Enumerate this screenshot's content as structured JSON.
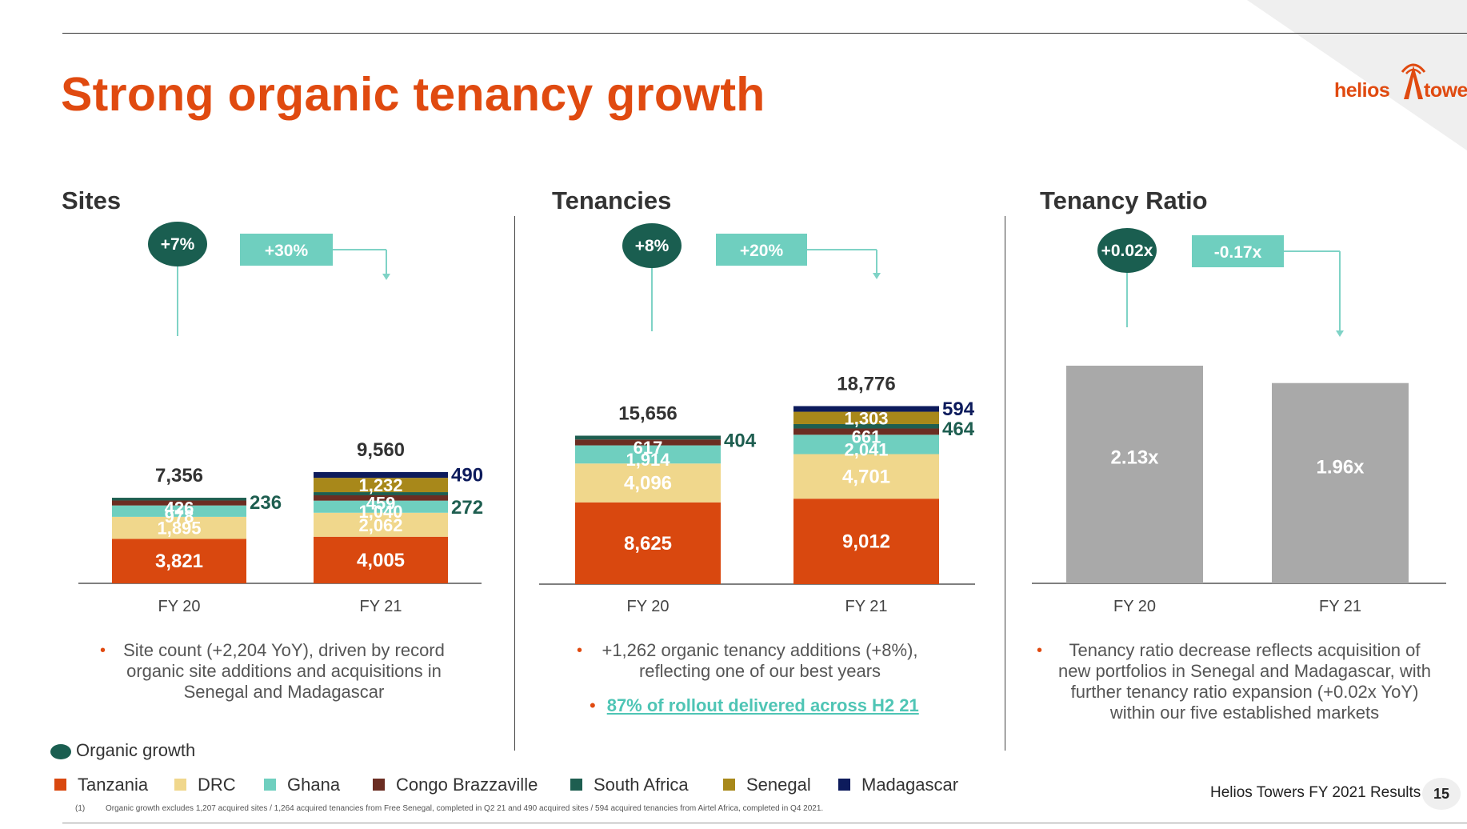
{
  "title": "Strong organic tenancy growth",
  "logo": {
    "left": "helios",
    "right": "towers"
  },
  "sections": {
    "sites": "Sites",
    "tenancies": "Tenancies",
    "ratio": "Tenancy Ratio"
  },
  "colors": {
    "accent": "#e04a10",
    "Tanzania": "#d9480f",
    "DRC": "#f0d78c",
    "Ghana": "#6fcfbf",
    "Congo Brazzaville": "#6b2d22",
    "South Africa": "#1e5e50",
    "Senegal": "#a8881a",
    "Madagascar": "#0d1b5c",
    "ratio_bar": "#a9a9a9",
    "organic": "#1a5e50",
    "growth_box": "#6fcfbf"
  },
  "chart_data": [
    {
      "type": "bar",
      "stacked": true,
      "title": "Sites",
      "categories": [
        "FY 20",
        "FY 21"
      ],
      "series": [
        {
          "name": "Tanzania",
          "values": [
            3821,
            4005
          ]
        },
        {
          "name": "DRC",
          "values": [
            1895,
            2062
          ]
        },
        {
          "name": "Ghana",
          "values": [
            978,
            1040
          ]
        },
        {
          "name": "Congo Brazzaville",
          "values": [
            426,
            459
          ]
        },
        {
          "name": "South Africa",
          "values": [
            236,
            272
          ]
        },
        {
          "name": "Senegal",
          "values": [
            0,
            1232
          ]
        },
        {
          "name": "Madagascar",
          "values": [
            0,
            490
          ]
        }
      ],
      "totals": [
        "7,356",
        "9,560"
      ],
      "labels": {
        "FY 20": {
          "Tanzania": "3,821",
          "DRC": "1,895",
          "Ghana": "978",
          "Congo Brazzaville": "426",
          "South Africa": "236"
        },
        "FY 21": {
          "Tanzania": "4,005",
          "DRC": "2,062",
          "Ghana": "1,040",
          "Congo Brazzaville": "459",
          "South Africa": "272",
          "Senegal": "1,232",
          "Madagascar": "490"
        }
      },
      "organic_growth": "+7%",
      "total_growth": "+30%"
    },
    {
      "type": "bar",
      "stacked": true,
      "title": "Tenancies",
      "categories": [
        "FY 20",
        "FY 21"
      ],
      "series": [
        {
          "name": "Tanzania",
          "values": [
            8625,
            9012
          ]
        },
        {
          "name": "DRC",
          "values": [
            4096,
            4701
          ]
        },
        {
          "name": "Ghana",
          "values": [
            1914,
            2041
          ]
        },
        {
          "name": "Congo Brazzaville",
          "values": [
            617,
            661
          ]
        },
        {
          "name": "South Africa",
          "values": [
            404,
            464
          ]
        },
        {
          "name": "Senegal",
          "values": [
            0,
            1303
          ]
        },
        {
          "name": "Madagascar",
          "values": [
            0,
            594
          ]
        }
      ],
      "totals": [
        "15,656",
        "18,776"
      ],
      "labels": {
        "FY 20": {
          "Tanzania": "8,625",
          "DRC": "4,096",
          "Ghana": "1,914",
          "Congo Brazzaville": "617",
          "South Africa": "404"
        },
        "FY 21": {
          "Tanzania": "9,012",
          "DRC": "4,701",
          "Ghana": "2,041",
          "Congo Brazzaville": "661",
          "South Africa": "464",
          "Senegal": "1,303",
          "Madagascar": "594"
        }
      },
      "organic_growth": "+8%",
      "total_growth": "+20%"
    },
    {
      "type": "bar",
      "title": "Tenancy Ratio",
      "categories": [
        "FY 20",
        "FY 21"
      ],
      "values": [
        2.13,
        1.96
      ],
      "value_labels": [
        "2.13x",
        "1.96x"
      ],
      "organic_growth": "+0.02x",
      "total_growth": "-0.17x"
    }
  ],
  "bullets": {
    "sites": "Site count (+2,204 YoY), driven by record organic site additions and acquisitions in Senegal and Madagascar",
    "tenancies": "+1,262 organic tenancy additions (+8%), reflecting one of our best years",
    "tenancies_link": "87% of rollout delivered across H2 21",
    "ratio": "Tenancy ratio decrease reflects acquisition of new portfolios in Senegal and Madagascar, with further tenancy ratio expansion (+0.02x YoY) within our five established markets"
  },
  "legend": {
    "organic": "Organic growth",
    "items": [
      "Tanzania",
      "DRC",
      "Ghana",
      "Congo Brazzaville",
      "South Africa",
      "Senegal",
      "Madagascar"
    ]
  },
  "footnote": {
    "num": "(1)",
    "text": "Organic growth excludes 1,207 acquired sites / 1,264 acquired tenancies from Free Senegal, completed in Q2 21 and 490 acquired sites / 594 acquired tenancies from Airtel Africa, completed in Q4 2021."
  },
  "footer": {
    "text": "Helios Towers FY 2021 Results",
    "page": "15"
  }
}
